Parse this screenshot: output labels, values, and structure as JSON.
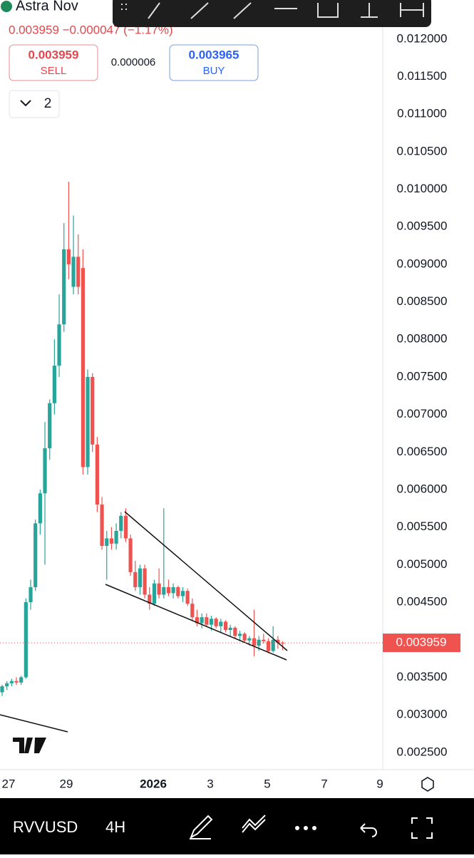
{
  "header": {
    "symbol_name": "Astra Nov",
    "quote_line": "0.003959 −0.000047 (−1.17%)",
    "sell": {
      "price": 0.003959,
      "label": "SELL"
    },
    "spread": 6e-06,
    "buy": {
      "price": 0.003965,
      "label": "BUY"
    },
    "layers_count": "2"
  },
  "chart_data": {
    "type": "candlestick",
    "open": [
      0.0033,
      0.00338,
      0.00342,
      0.00345,
      0.00343,
      0.0035,
      0.0045,
      0.0047,
      0.00555,
      0.00595,
      0.00655,
      0.00715,
      0.00765,
      0.0082,
      0.0092,
      0.0087,
      0.0091,
      0.00895,
      0.0063,
      0.0075,
      0.0066,
      0.0058,
      0.00525,
      0.00535,
      0.00528,
      0.00545,
      0.00565,
      0.00535,
      0.0049,
      0.0047,
      0.00495,
      0.0046,
      0.00448,
      0.00475,
      0.0046,
      0.0047,
      0.00462,
      0.0047,
      0.00458,
      0.00465,
      0.00448,
      0.0043,
      0.00422,
      0.0043,
      0.0042,
      0.00428,
      0.00418,
      0.00424,
      0.00413,
      0.00416,
      0.00405,
      0.00408,
      0.00399,
      0.00402,
      0.00392,
      0.004,
      0.00398,
      0.00385,
      0.004,
      0.00396
    ],
    "high": [
      0.0034,
      0.00345,
      0.00348,
      0.0035,
      0.00352,
      0.00455,
      0.0048,
      0.0056,
      0.006,
      0.0069,
      0.0072,
      0.008,
      0.0086,
      0.00955,
      0.0101,
      0.00965,
      0.0094,
      0.0092,
      0.0076,
      0.00755,
      0.0067,
      0.0059,
      0.00545,
      0.0055,
      0.00555,
      0.0057,
      0.00575,
      0.0054,
      0.00505,
      0.005,
      0.005,
      0.0047,
      0.0048,
      0.00495,
      0.00575,
      0.0048,
      0.00475,
      0.00472,
      0.0047,
      0.00468,
      0.00455,
      0.0044,
      0.00435,
      0.00435,
      0.00432,
      0.0043,
      0.00428,
      0.00426,
      0.0042,
      0.00418,
      0.00412,
      0.0041,
      0.00405,
      0.0044,
      0.00405,
      0.00408,
      0.00402,
      0.00418,
      0.00405,
      0.00398
    ],
    "low": [
      0.00325,
      0.00333,
      0.00338,
      0.0034,
      0.0034,
      0.00348,
      0.0044,
      0.00465,
      0.0054,
      0.005,
      0.0064,
      0.007,
      0.0075,
      0.0081,
      0.0088,
      0.0086,
      0.0086,
      0.0062,
      0.0062,
      0.0065,
      0.0057,
      0.0052,
      0.0048,
      0.0052,
      0.0052,
      0.00535,
      0.0053,
      0.00485,
      0.00465,
      0.0046,
      0.00455,
      0.0044,
      0.00445,
      0.00455,
      0.00455,
      0.00458,
      0.00455,
      0.00455,
      0.0045,
      0.00445,
      0.00425,
      0.00418,
      0.00415,
      0.00418,
      0.00412,
      0.00415,
      0.0041,
      0.0041,
      0.00405,
      0.00402,
      0.00398,
      0.00396,
      0.00392,
      0.00378,
      0.00385,
      0.00395,
      0.00382,
      0.00383,
      0.00388,
      0.00386
    ],
    "close": [
      0.00338,
      0.00342,
      0.00345,
      0.00343,
      0.0035,
      0.0045,
      0.0047,
      0.00555,
      0.00595,
      0.00655,
      0.00715,
      0.00765,
      0.0082,
      0.0092,
      0.009,
      0.0091,
      0.0087,
      0.0063,
      0.0075,
      0.0066,
      0.0058,
      0.00525,
      0.00535,
      0.00528,
      0.00545,
      0.00565,
      0.00535,
      0.0049,
      0.0047,
      0.00495,
      0.0046,
      0.00448,
      0.00475,
      0.0046,
      0.0047,
      0.00462,
      0.0047,
      0.00458,
      0.00465,
      0.00448,
      0.0043,
      0.00422,
      0.0043,
      0.0042,
      0.00428,
      0.00418,
      0.00424,
      0.00413,
      0.00416,
      0.00405,
      0.00408,
      0.00399,
      0.00402,
      0.00392,
      0.004,
      0.00398,
      0.00385,
      0.004,
      0.00396,
      0.003959
    ],
    "up_color": "#26a69a",
    "down_color": "#ef5350",
    "ylim": [
      0.00227,
      0.01252
    ],
    "yticks": [
      {
        "value": 0.0025,
        "label": "0.002500"
      },
      {
        "value": 0.003,
        "label": "0.003000"
      },
      {
        "value": 0.0035,
        "label": "0.003500"
      },
      {
        "value": 0.004,
        "label": "0.004000"
      },
      {
        "value": 0.0045,
        "label": "0.004500"
      },
      {
        "value": 0.005,
        "label": "0.005000"
      },
      {
        "value": 0.0055,
        "label": "0.005500"
      },
      {
        "value": 0.006,
        "label": "0.006000"
      },
      {
        "value": 0.0065,
        "label": "0.006500"
      },
      {
        "value": 0.007,
        "label": "0.007000"
      },
      {
        "value": 0.0075,
        "label": "0.007500"
      },
      {
        "value": 0.008,
        "label": "0.008000"
      },
      {
        "value": 0.0085,
        "label": "0.008500"
      },
      {
        "value": 0.009,
        "label": "0.009000"
      },
      {
        "value": 0.0095,
        "label": "0.009500"
      },
      {
        "value": 0.01,
        "label": "0.010000"
      },
      {
        "value": 0.0105,
        "label": "0.010500"
      },
      {
        "value": 0.011,
        "label": "0.011000"
      },
      {
        "value": 0.0115,
        "label": "0.011500"
      },
      {
        "value": 0.012,
        "label": "0.012000"
      }
    ],
    "x_labels": [
      "27",
      "29",
      "2026",
      "3",
      "5",
      "7",
      "9"
    ],
    "last_price": 0.003959
  },
  "footer": {
    "symbol": "RVVUSD",
    "interval": "4H"
  }
}
